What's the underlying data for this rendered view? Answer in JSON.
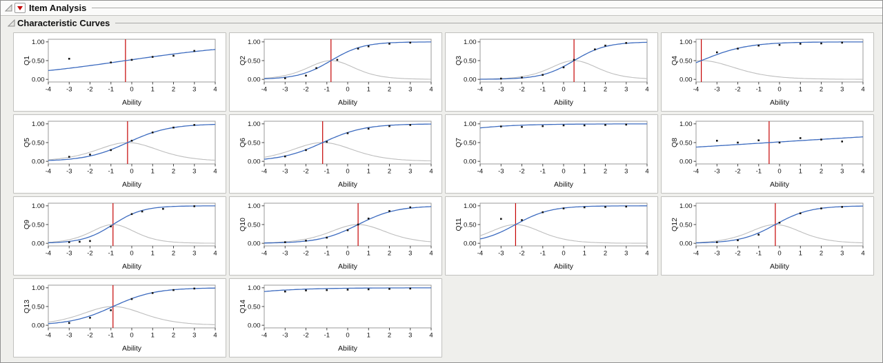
{
  "header": {
    "title": "Item Analysis"
  },
  "section": {
    "title": "Characteristic Curves"
  },
  "icons": {
    "disclosure": "open-disclosure-triangle",
    "red_triangle_menu": "red-triangle-menu"
  },
  "colors": {
    "curve": "#3b6abf",
    "secondary_curve": "#bdbdbd",
    "threshold": "#c40000",
    "point": "#141414",
    "frame": "#9a9a9a",
    "tick": "#444444",
    "text": "#111111"
  },
  "axes": {
    "xlabel": "Ability",
    "xlim": [
      -4,
      4
    ],
    "ylim": [
      0,
      1
    ],
    "x_ticks": [
      -4,
      -3,
      -2,
      -1,
      0,
      1,
      2,
      3,
      4
    ],
    "y_ticks": [
      1.0,
      0.5,
      0.0
    ],
    "y_tick_labels": [
      "1.00",
      "0.50",
      "0.00"
    ],
    "grid": false
  },
  "chart_data": [
    {
      "name": "Q1",
      "type": "line",
      "model": "2PL logistic ICC",
      "slope": 0.32,
      "difficulty": -0.3,
      "threshold_line": -0.3,
      "show_secondary": false,
      "points": [
        [
          -3,
          0.55
        ],
        [
          -1,
          0.45
        ],
        [
          0,
          0.52
        ],
        [
          1,
          0.6
        ],
        [
          2,
          0.63
        ],
        [
          3,
          0.76
        ]
      ]
    },
    {
      "name": "Q2",
      "type": "line",
      "model": "2PL logistic ICC",
      "slope": 1.3,
      "difficulty": -0.8,
      "threshold_line": -0.8,
      "show_secondary": true,
      "points": [
        [
          -3,
          0.03
        ],
        [
          -2,
          0.1
        ],
        [
          -1.5,
          0.3
        ],
        [
          -0.5,
          0.52
        ],
        [
          0.5,
          0.82
        ],
        [
          1,
          0.88
        ],
        [
          2,
          0.95
        ],
        [
          3,
          0.98
        ]
      ]
    },
    {
      "name": "Q3",
      "type": "line",
      "model": "2PL logistic ICC",
      "slope": 1.3,
      "difficulty": 0.5,
      "threshold_line": 0.5,
      "show_secondary": true,
      "points": [
        [
          -3,
          0.02
        ],
        [
          -2,
          0.05
        ],
        [
          -1,
          0.12
        ],
        [
          0,
          0.32
        ],
        [
          0.5,
          0.52
        ],
        [
          1.5,
          0.8
        ],
        [
          2,
          0.9
        ],
        [
          3,
          0.97
        ]
      ]
    },
    {
      "name": "Q4",
      "type": "line",
      "model": "2PL logistic ICC",
      "slope": 0.9,
      "difficulty": -3.75,
      "threshold_line": -3.75,
      "show_secondary": true,
      "points": [
        [
          -3,
          0.72
        ],
        [
          -2,
          0.82
        ],
        [
          -1,
          0.9
        ],
        [
          0,
          0.92
        ],
        [
          1,
          0.95
        ],
        [
          2,
          0.96
        ],
        [
          3,
          0.98
        ]
      ]
    },
    {
      "name": "Q5",
      "type": "line",
      "model": "2PL logistic ICC",
      "slope": 1.0,
      "difficulty": -0.2,
      "threshold_line": -0.2,
      "show_secondary": true,
      "points": [
        [
          -3,
          0.12
        ],
        [
          -2,
          0.18
        ],
        [
          -1,
          0.3
        ],
        [
          0,
          0.55
        ],
        [
          1,
          0.77
        ],
        [
          2,
          0.9
        ],
        [
          3,
          0.97
        ]
      ]
    },
    {
      "name": "Q6",
      "type": "line",
      "model": "2PL logistic ICC",
      "slope": 1.0,
      "difficulty": -1.2,
      "threshold_line": -1.2,
      "show_secondary": true,
      "points": [
        [
          -3,
          0.13
        ],
        [
          -2,
          0.3
        ],
        [
          -1,
          0.52
        ],
        [
          0,
          0.75
        ],
        [
          1,
          0.87
        ],
        [
          2,
          0.94
        ],
        [
          3,
          0.97
        ]
      ]
    },
    {
      "name": "Q7",
      "type": "line",
      "model": "2PL logistic ICC",
      "slope": 0.6,
      "difficulty": -7.5,
      "threshold_line": null,
      "show_secondary": false,
      "points": [
        [
          -3,
          0.93
        ],
        [
          -2,
          0.92
        ],
        [
          -1,
          0.94
        ],
        [
          0,
          0.96
        ],
        [
          1,
          0.96
        ],
        [
          2,
          0.97
        ],
        [
          3,
          0.98
        ]
      ]
    },
    {
      "name": "Q8",
      "type": "line",
      "model": "2PL logistic ICC",
      "slope": 0.14,
      "difficulty": -0.5,
      "threshold_line": -0.5,
      "show_secondary": false,
      "points": [
        [
          -3,
          0.55
        ],
        [
          -2,
          0.5
        ],
        [
          -1,
          0.56
        ],
        [
          0,
          0.5
        ],
        [
          1,
          0.62
        ],
        [
          2,
          0.58
        ],
        [
          3,
          0.53
        ]
      ]
    },
    {
      "name": "Q9",
      "type": "line",
      "model": "2PL logistic ICC",
      "slope": 1.4,
      "difficulty": -0.9,
      "threshold_line": -0.9,
      "show_secondary": true,
      "points": [
        [
          -3,
          0.03
        ],
        [
          -2.5,
          0.04
        ],
        [
          -2,
          0.06
        ],
        [
          -1,
          0.45
        ],
        [
          0,
          0.78
        ],
        [
          0.5,
          0.85
        ],
        [
          1.5,
          0.92
        ],
        [
          3,
          0.99
        ]
      ]
    },
    {
      "name": "Q10",
      "type": "line",
      "model": "2PL logistic ICC",
      "slope": 1.1,
      "difficulty": 0.5,
      "threshold_line": 0.5,
      "show_secondary": true,
      "points": [
        [
          -3,
          0.03
        ],
        [
          -2,
          0.07
        ],
        [
          -1,
          0.15
        ],
        [
          0,
          0.35
        ],
        [
          0.5,
          0.5
        ],
        [
          1,
          0.66
        ],
        [
          2,
          0.86
        ],
        [
          3,
          0.96
        ]
      ]
    },
    {
      "name": "Q11",
      "type": "line",
      "model": "2PL logistic ICC",
      "slope": 1.2,
      "difficulty": -2.3,
      "threshold_line": -2.3,
      "show_secondary": true,
      "points": [
        [
          -3,
          0.65
        ],
        [
          -2,
          0.62
        ],
        [
          -1,
          0.83
        ],
        [
          0,
          0.93
        ],
        [
          1,
          0.96
        ],
        [
          2,
          0.97
        ],
        [
          3,
          0.98
        ]
      ]
    },
    {
      "name": "Q12",
      "type": "line",
      "model": "2PL logistic ICC",
      "slope": 1.2,
      "difficulty": -0.2,
      "threshold_line": -0.2,
      "show_secondary": true,
      "points": [
        [
          -3,
          0.03
        ],
        [
          -2,
          0.08
        ],
        [
          -1,
          0.23
        ],
        [
          0,
          0.55
        ],
        [
          1,
          0.8
        ],
        [
          2,
          0.93
        ],
        [
          3,
          0.97
        ]
      ]
    },
    {
      "name": "Q13",
      "type": "line",
      "model": "2PL logistic ICC",
      "slope": 1.0,
      "difficulty": -0.9,
      "threshold_line": -0.9,
      "show_secondary": true,
      "points": [
        [
          -3,
          0.06
        ],
        [
          -2,
          0.2
        ],
        [
          -1,
          0.4
        ],
        [
          0,
          0.7
        ],
        [
          1,
          0.86
        ],
        [
          2,
          0.94
        ],
        [
          3,
          0.98
        ]
      ]
    },
    {
      "name": "Q14",
      "type": "line",
      "model": "2PL logistic ICC",
      "slope": 0.55,
      "difficulty": -8,
      "threshold_line": null,
      "show_secondary": false,
      "points": [
        [
          -3,
          0.9
        ],
        [
          -2,
          0.93
        ],
        [
          -1,
          0.94
        ],
        [
          0,
          0.95
        ],
        [
          1,
          0.96
        ],
        [
          2,
          0.97
        ],
        [
          3,
          0.98
        ]
      ]
    }
  ]
}
